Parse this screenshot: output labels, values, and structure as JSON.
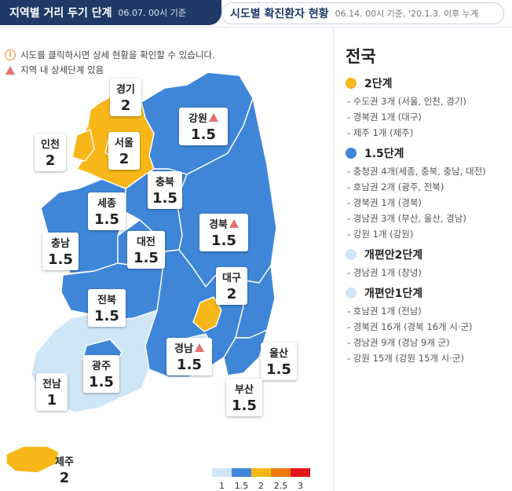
{
  "tabs": {
    "active_title": "지역별 거리 두기 단계",
    "active_date": "06.07. 00시 기준",
    "inactive_title": "시도별 확진환자 현황",
    "inactive_date": "06.14. 00시 기준, '20.1.3. 이후 누계"
  },
  "notices": {
    "click": "시도를 클릭하시면 상세 현황을 확인할 수 있습니다.",
    "warn": "지역 내 상세단계 있음"
  },
  "colors": {
    "level_1": "#cfe6f7",
    "level_1_5": "#3f86d8",
    "level_2": "#f7b718",
    "level_2_5": "#f07a12",
    "level_3": "#e3141b",
    "warning": "#e57373",
    "header": "#1f3a66"
  },
  "regions": [
    {
      "name": "경기",
      "level": "2",
      "warning": false
    },
    {
      "name": "강원",
      "level": "1.5",
      "warning": true
    },
    {
      "name": "인천",
      "level": "2",
      "warning": false
    },
    {
      "name": "서울",
      "level": "2",
      "warning": false
    },
    {
      "name": "충북",
      "level": "1.5",
      "warning": false
    },
    {
      "name": "세종",
      "level": "1.5",
      "warning": false
    },
    {
      "name": "경북",
      "level": "1.5",
      "warning": true
    },
    {
      "name": "대전",
      "level": "1.5",
      "warning": false
    },
    {
      "name": "충남",
      "level": "1.5",
      "warning": false
    },
    {
      "name": "대구",
      "level": "2",
      "warning": false
    },
    {
      "name": "전북",
      "level": "1.5",
      "warning": false
    },
    {
      "name": "경남",
      "level": "1.5",
      "warning": true
    },
    {
      "name": "울산",
      "level": "1.5",
      "warning": false
    },
    {
      "name": "광주",
      "level": "1.5",
      "warning": false
    },
    {
      "name": "전남",
      "level": "1",
      "warning": false
    },
    {
      "name": "부산",
      "level": "1.5",
      "warning": false
    },
    {
      "name": "제주",
      "level": "2",
      "warning": false
    }
  ],
  "summary": {
    "title": "전국",
    "categories": [
      {
        "label": "2단계",
        "color": "#f7b718",
        "items": [
          "- 수도권 3개 (서울, 인천, 경기)",
          "- 경북권 1개 (대구)",
          "- 제주 1개 (제주)"
        ]
      },
      {
        "label": "1.5단계",
        "color": "#3f86d8",
        "items": [
          "- 충청권 4개(세종, 충북, 충남, 대전)",
          "- 호남권 2개 (광주, 전북)",
          "- 경북권 1개 (경북)",
          "- 경남권 3개 (부산, 울산, 경남)",
          "- 강원 1개 (강원)"
        ]
      },
      {
        "label": "개편안2단계",
        "color": "#cfe6f7",
        "items": [
          "- 경남권 1개 (창녕)"
        ]
      },
      {
        "label": "개편안1단계",
        "color": "#cfe6f7",
        "items": [
          "- 호남권 1개 (전남)",
          "- 경북권 16개 (경북 16개 시·군)",
          "- 경남권 9개 (경남 9개 군)",
          "- 강원 15개 (강원 15개 시·군)"
        ]
      }
    ]
  },
  "legend": {
    "labels": [
      "1",
      "1.5",
      "2",
      "2.5",
      "3"
    ],
    "colors": [
      "#cfe6f7",
      "#3f86d8",
      "#f7b718",
      "#f07a12",
      "#e3141b"
    ]
  }
}
